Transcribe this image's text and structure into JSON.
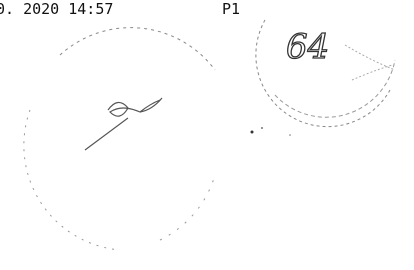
{
  "header": {
    "timestamp": "0. 2020 14:57",
    "page": "P1"
  },
  "handwriting": "64"
}
